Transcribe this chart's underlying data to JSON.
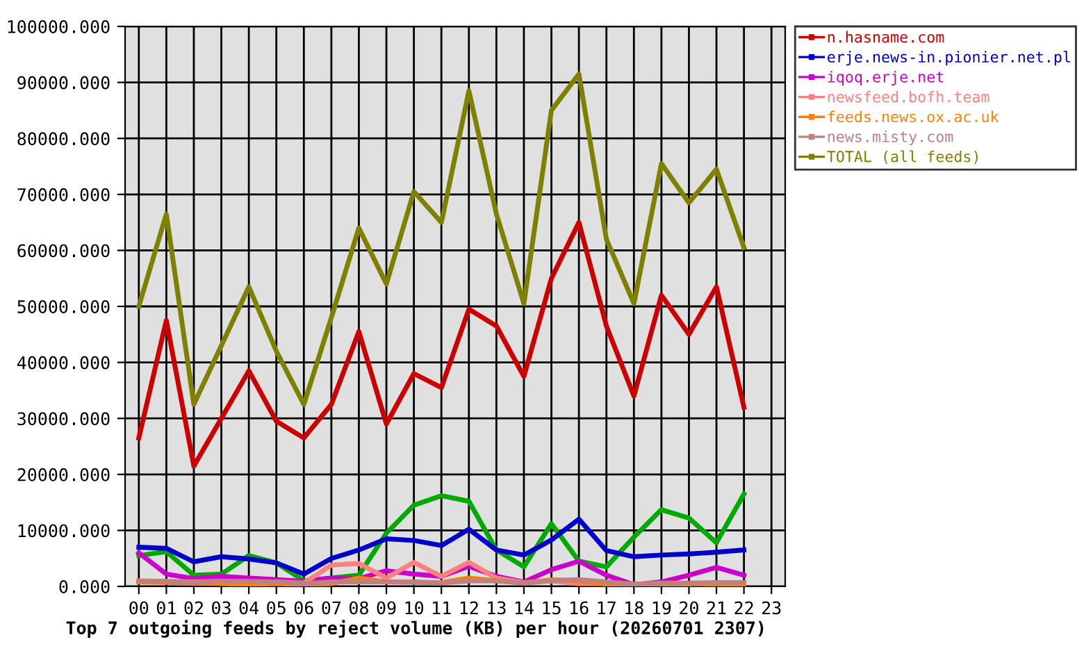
{
  "chart_data": {
    "type": "line",
    "xlabel": "Top 7 outgoing feeds by reject volume (KB) per hour (20260701 2307)",
    "categories": [
      "00",
      "01",
      "02",
      "03",
      "04",
      "05",
      "06",
      "07",
      "08",
      "09",
      "10",
      "11",
      "12",
      "13",
      "14",
      "15",
      "16",
      "17",
      "18",
      "19",
      "20",
      "21",
      "22",
      "23"
    ],
    "ylim": [
      0,
      100000
    ],
    "yticks": [
      {
        "value": 0,
        "label": "0.000"
      },
      {
        "value": 10000,
        "label": "10000.000"
      },
      {
        "value": 20000,
        "label": "20000.000"
      },
      {
        "value": 30000,
        "label": "30000.000"
      },
      {
        "value": 40000,
        "label": "40000.000"
      },
      {
        "value": 50000,
        "label": "50000.000"
      },
      {
        "value": 60000,
        "label": "60000.000"
      },
      {
        "value": 70000,
        "label": "70000.000"
      },
      {
        "value": 80000,
        "label": "80000.000"
      },
      {
        "value": 90000,
        "label": "90000.000"
      },
      {
        "value": 100000,
        "label": "100000.000"
      }
    ],
    "grid": true,
    "legend": "top right",
    "marker": "none",
    "line_style": "solid",
    "series": [
      {
        "name": "n.hasname.com",
        "color": "#cc0000",
        "values": [
          26500,
          47500,
          21500,
          30000,
          38500,
          29500,
          26500,
          32500,
          45500,
          29000,
          38000,
          35500,
          49500,
          46500,
          37500,
          55000,
          65000,
          46500,
          34000,
          52000,
          45000,
          53500,
          32000,
          null
        ]
      },
      {
        "color": "#00aa00",
        "values": [
          5500,
          6200,
          2000,
          2200,
          5500,
          4200,
          1000,
          1500,
          2000,
          9500,
          14500,
          16200,
          15200,
          6500,
          3500,
          11200,
          4500,
          3500,
          8800,
          13700,
          12200,
          7800,
          16500,
          null
        ]
      },
      {
        "name": "erje.news-in.pionier.net.pl",
        "color": "#0000cc",
        "values": [
          7000,
          6800,
          4400,
          5300,
          4900,
          4200,
          2200,
          5000,
          6500,
          8500,
          8200,
          7300,
          10200,
          6500,
          5600,
          8300,
          12000,
          6400,
          5300,
          5600,
          5800,
          6100,
          6500,
          null
        ]
      },
      {
        "name": "iqoq.erje.net",
        "color": "#cc00cc",
        "values": [
          6000,
          2200,
          1400,
          1800,
          1500,
          1200,
          900,
          1500,
          1400,
          2800,
          2200,
          1800,
          3600,
          1800,
          800,
          3000,
          4500,
          2000,
          300,
          800,
          2000,
          3400,
          2000,
          null
        ]
      },
      {
        "name": "newsfeed.bofh.team",
        "color": "#ff8080",
        "values": [
          1000,
          900,
          800,
          900,
          800,
          800,
          600,
          3800,
          4100,
          1500,
          4300,
          1800,
          4300,
          1500,
          700,
          1000,
          500,
          500,
          300,
          300,
          400,
          null,
          null,
          null
        ]
      },
      {
        "name": "feeds.news.ox.ac.uk",
        "color": "#ff8000",
        "values": [
          800,
          700,
          600,
          500,
          300,
          500,
          300,
          500,
          1500,
          800,
          700,
          700,
          1500,
          1000,
          600,
          1200,
          1000,
          400,
          200,
          400,
          500,
          400,
          300,
          null
        ]
      },
      {
        "name": "news.misty.com",
        "color": "#c08080",
        "values": [
          900,
          900,
          700,
          900,
          900,
          800,
          500,
          800,
          800,
          800,
          800,
          600,
          1000,
          1000,
          600,
          1000,
          1200,
          800,
          400,
          600,
          600,
          700,
          700,
          null
        ]
      },
      {
        "name": "TOTAL (all feeds)",
        "color": "#808000",
        "values": [
          50000,
          66500,
          32500,
          43000,
          53500,
          42000,
          32500,
          48000,
          64000,
          54000,
          70500,
          65000,
          88500,
          66500,
          50500,
          85000,
          91500,
          62000,
          50500,
          75500,
          68500,
          74500,
          60500,
          null
        ]
      }
    ]
  }
}
